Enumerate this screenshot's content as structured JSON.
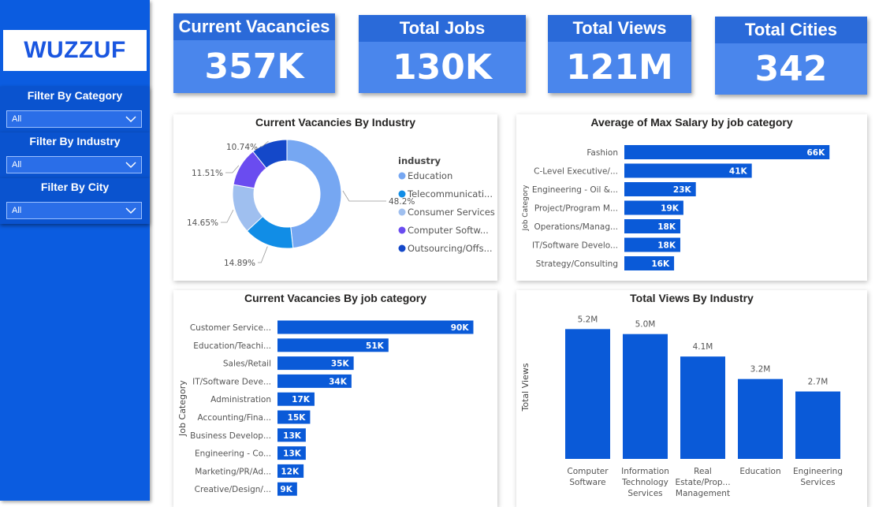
{
  "sidebar": {
    "logo": "WUZZUF",
    "filters": [
      {
        "title": "Filter By Category",
        "value": "All"
      },
      {
        "title": "Filter By Industry",
        "value": "All"
      },
      {
        "title": "Filter By City",
        "value": "All"
      }
    ]
  },
  "kpis": [
    {
      "title": "Current Vacancies",
      "value": "357K"
    },
    {
      "title": "Total Jobs",
      "value": "130K"
    },
    {
      "title": "Total Views",
      "value": "121M"
    },
    {
      "title": "Total Cities",
      "value": "342"
    }
  ],
  "colors": {
    "primary": "#0b5ce0",
    "bar": "#0a5ad8"
  },
  "chart_data": [
    {
      "type": "pie",
      "title": "Current Vacancies By Industry",
      "legend_title": "industry",
      "slices": [
        {
          "label": "Education",
          "legend": "Education",
          "pct": 48.2,
          "pct_label": "48.2%",
          "color": "#76a7f2"
        },
        {
          "label": "Telecommunications",
          "legend": "Telecommunicati...",
          "pct": 14.89,
          "pct_label": "14.89%",
          "color": "#118de6"
        },
        {
          "label": "Consumer Services",
          "legend": "Consumer Services",
          "pct": 14.65,
          "pct_label": "14.65%",
          "color": "#9fbfef"
        },
        {
          "label": "Computer Software",
          "legend": "Computer Softw...",
          "pct": 11.51,
          "pct_label": "11.51%",
          "color": "#6a4cf0"
        },
        {
          "label": "Outsourcing/Offshoring",
          "legend": "Outsourcing/Offs...",
          "pct": 10.74,
          "pct_label": "10.74%",
          "color": "#1448c9"
        }
      ]
    },
    {
      "type": "bar",
      "orientation": "horizontal",
      "title": "Average of Max Salary by job category",
      "ylabel": "Job Category",
      "categories": [
        "Fashion",
        "C-Level Executive/...",
        "Engineering - Oil &...",
        "Project/Program M...",
        "Operations/Manag...",
        "IT/Software Develo...",
        "Strategy/Consulting"
      ],
      "values": [
        66,
        41,
        23,
        19,
        18,
        18,
        16
      ],
      "labels": [
        "66K",
        "41K",
        "23K",
        "19K",
        "18K",
        "18K",
        "16K"
      ],
      "xlim": [
        0,
        70
      ]
    },
    {
      "type": "bar",
      "orientation": "horizontal",
      "title": "Current Vacancies By job category",
      "ylabel": "Job Category",
      "categories": [
        "Customer Service...",
        "Education/Teachi...",
        "Sales/Retail",
        "IT/Software Deve...",
        "Administration",
        "Accounting/Fina...",
        "Business Develop...",
        "Engineering - Co...",
        "Marketing/PR/Ad...",
        "Creative/Design/..."
      ],
      "values": [
        90,
        51,
        35,
        34,
        17,
        15,
        13,
        13,
        12,
        9
      ],
      "labels": [
        "90K",
        "51K",
        "35K",
        "34K",
        "17K",
        "15K",
        "13K",
        "13K",
        "12K",
        "9K"
      ],
      "xlim": [
        0,
        92
      ]
    },
    {
      "type": "bar",
      "orientation": "vertical",
      "title": "Total Views By Industry",
      "ylabel": "Total Views",
      "categories": [
        [
          "Computer",
          "Software"
        ],
        [
          "Information",
          "Technology",
          "Services"
        ],
        [
          "Real",
          "Estate/Prop...",
          "Management"
        ],
        [
          "Education"
        ],
        [
          "Engineering",
          "Services"
        ]
      ],
      "values": [
        5.2,
        5.0,
        4.1,
        3.2,
        2.7
      ],
      "labels": [
        "5.2M",
        "5.0M",
        "4.1M",
        "3.2M",
        "2.7M"
      ],
      "ylim": [
        0,
        6
      ]
    }
  ]
}
